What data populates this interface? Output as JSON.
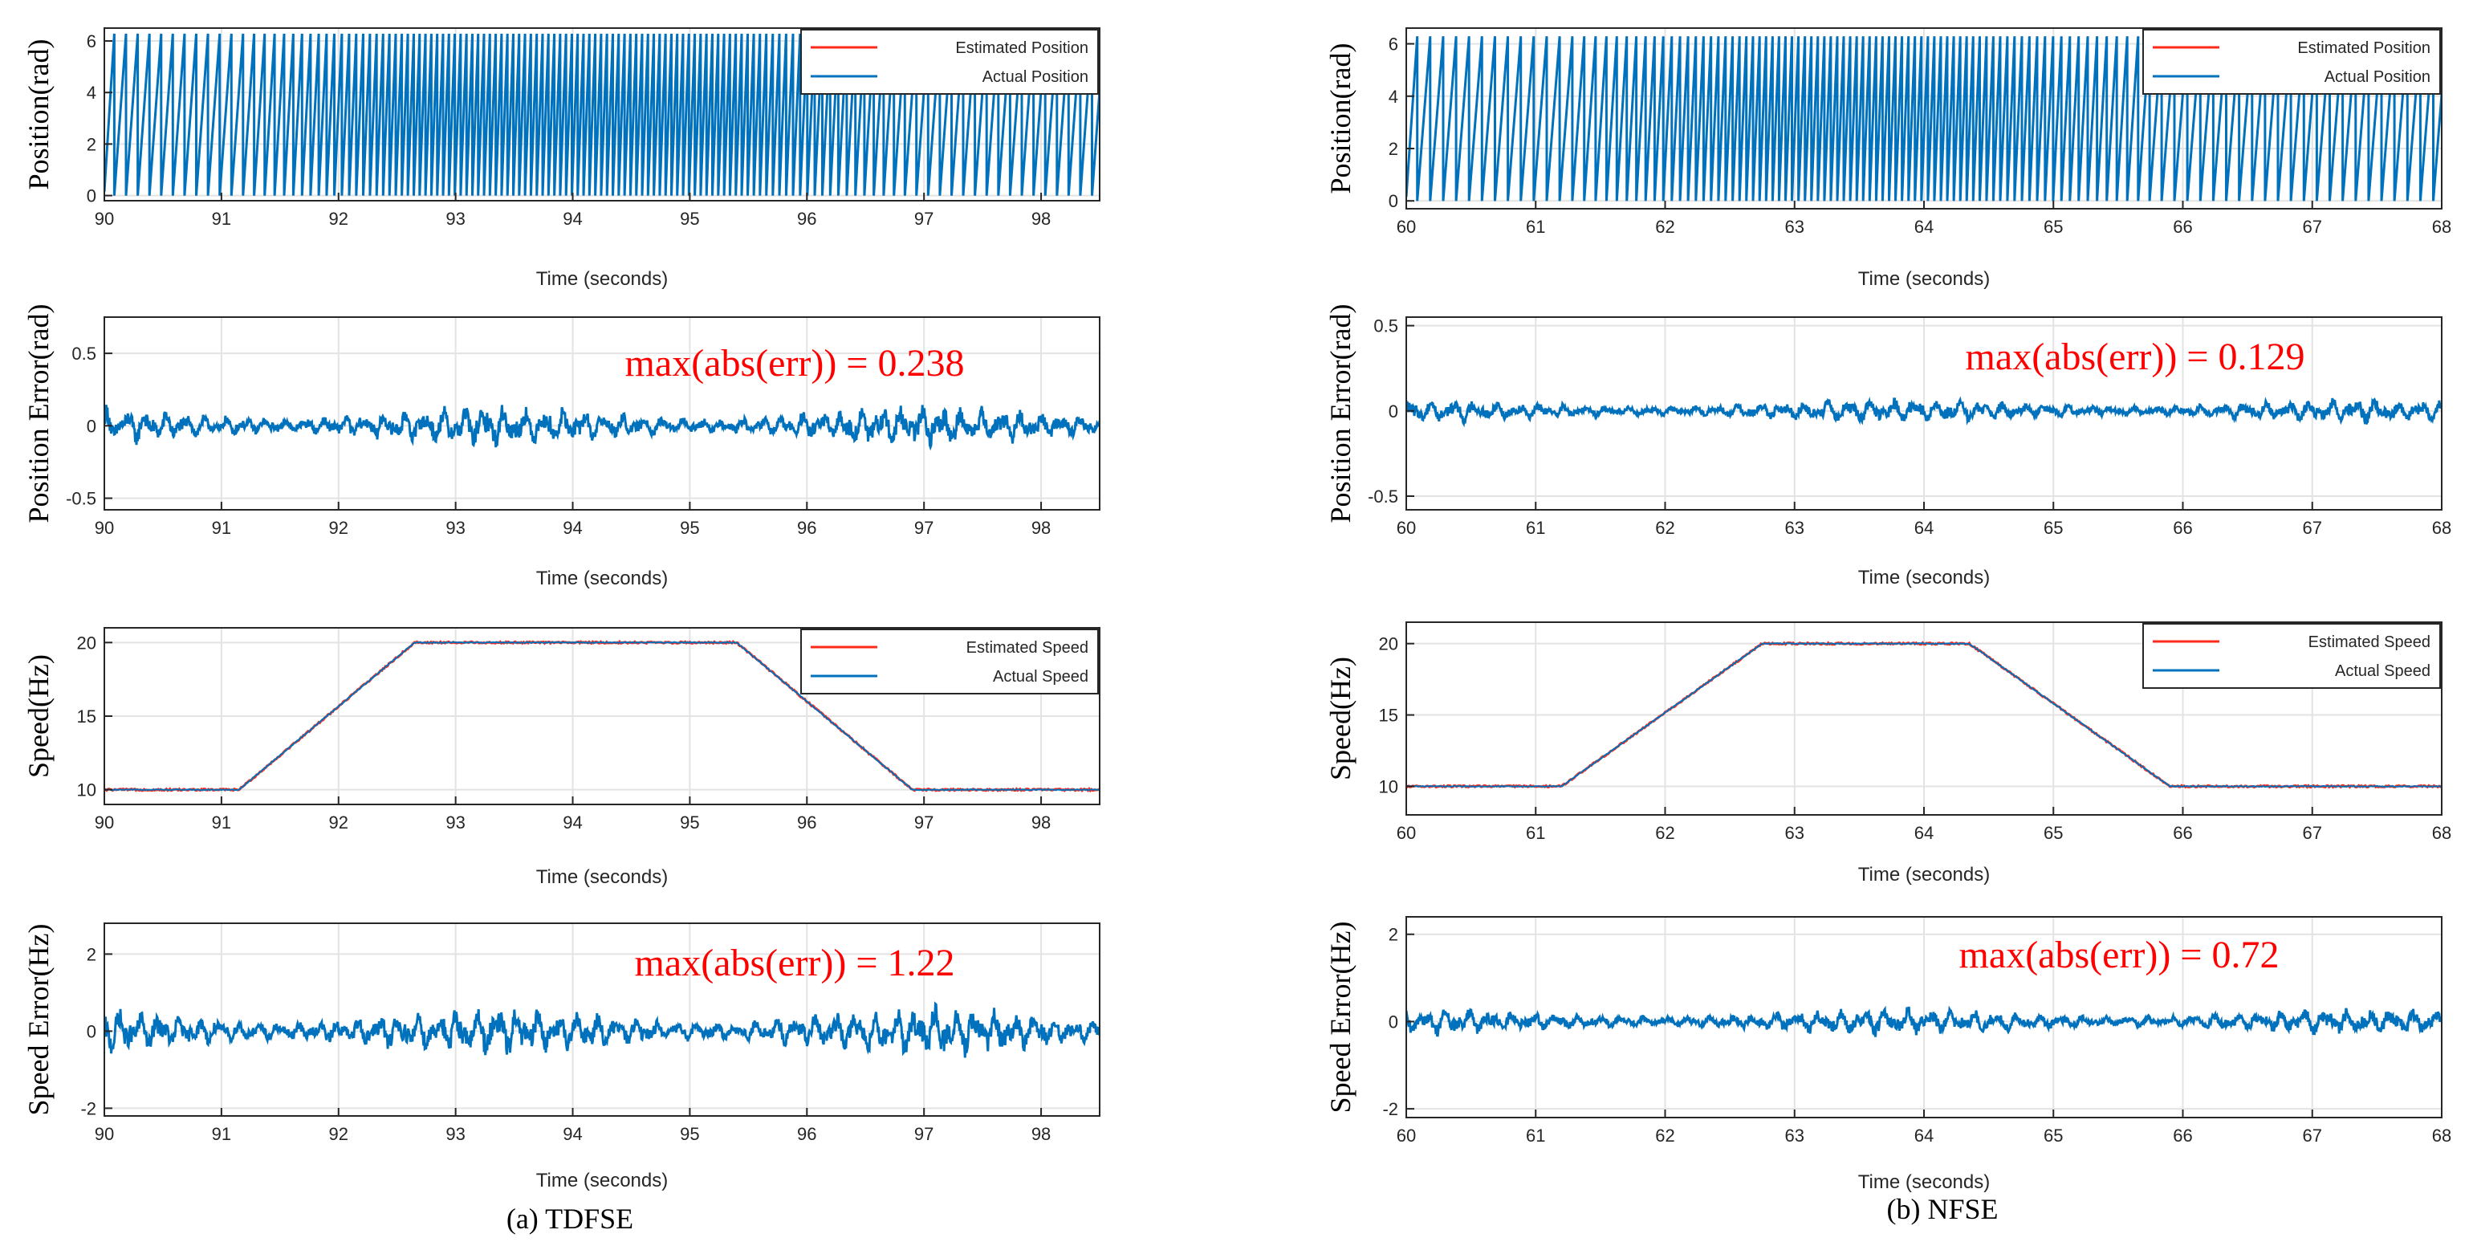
{
  "captions": [
    "(a) TDFSE",
    "(b) NFSE"
  ],
  "chart_data": [
    {
      "type": "line",
      "panel": "a1",
      "xlabel": "Time (seconds)",
      "ylabel": "Position(rad)",
      "xlim": [
        90,
        98.5
      ],
      "ylim": [
        -0.2,
        6.5
      ],
      "xticks": [
        "90",
        "91",
        "92",
        "93",
        "94",
        "95",
        "96",
        "97",
        "98"
      ],
      "yticks": [
        "0",
        "2",
        "4",
        "6"
      ],
      "legend": "top-right",
      "grid": true,
      "signal": "sawtooth",
      "sawtooth_range": [
        0,
        6.283
      ],
      "speed_profile_hz": [
        [
          90,
          10
        ],
        [
          91.15,
          10
        ],
        [
          92.65,
          20
        ],
        [
          95.4,
          20
        ],
        [
          96.9,
          10
        ],
        [
          98.5,
          10
        ]
      ],
      "series": [
        {
          "name": "Estimated Position",
          "color": "#ff2a1a"
        },
        {
          "name": "Actual Position",
          "color": "#0072bd"
        }
      ]
    },
    {
      "type": "line",
      "panel": "a2",
      "xlabel": "Time (seconds)",
      "ylabel": "Position Error(rad)",
      "xlim": [
        90,
        98.5
      ],
      "ylim": [
        -0.58,
        0.75
      ],
      "xticks": [
        "90",
        "91",
        "92",
        "93",
        "94",
        "95",
        "96",
        "97",
        "98"
      ],
      "yticks": [
        "-0.5",
        "0",
        "0.5"
      ],
      "grid": true,
      "signal": "noise",
      "noise_amplitude": 0.1,
      "annotation": "max(abs(err)) = 0.238",
      "series": [
        {
          "color": "#0072bd"
        }
      ]
    },
    {
      "type": "line",
      "panel": "a3",
      "xlabel": "Time (seconds)",
      "ylabel": "Speed(Hz)",
      "xlim": [
        90,
        98.5
      ],
      "ylim": [
        9,
        21
      ],
      "xticks": [
        "90",
        "91",
        "92",
        "93",
        "94",
        "95",
        "96",
        "97",
        "98"
      ],
      "yticks": [
        "10",
        "15",
        "20"
      ],
      "legend": "top-right",
      "grid": true,
      "signal": "profile",
      "points": [
        [
          90,
          10
        ],
        [
          91.15,
          10
        ],
        [
          92.65,
          20
        ],
        [
          95.4,
          20
        ],
        [
          96.9,
          10
        ],
        [
          98.5,
          10
        ]
      ],
      "series": [
        {
          "name": "Estimated Speed",
          "color": "#ff2a1a"
        },
        {
          "name": "Actual Speed",
          "color": "#0072bd"
        }
      ]
    },
    {
      "type": "line",
      "panel": "a4",
      "xlabel": "Time (seconds)",
      "ylabel": "Speed Error(Hz)",
      "xlim": [
        90,
        98.5
      ],
      "ylim": [
        -2.2,
        2.8
      ],
      "xticks": [
        "90",
        "91",
        "92",
        "93",
        "94",
        "95",
        "96",
        "97",
        "98"
      ],
      "yticks": [
        "-2",
        "0",
        "2"
      ],
      "grid": true,
      "signal": "noise",
      "noise_amplitude": 0.45,
      "annotation": "max(abs(err)) = 1.22",
      "series": [
        {
          "color": "#0072bd"
        }
      ]
    },
    {
      "type": "line",
      "panel": "b1",
      "xlabel": "Time (seconds)",
      "ylabel": "Position(rad)",
      "xlim": [
        60,
        68
      ],
      "ylim": [
        -0.3,
        6.6
      ],
      "xticks": [
        "60",
        "61",
        "62",
        "63",
        "64",
        "65",
        "66",
        "67",
        "68"
      ],
      "yticks": [
        "0",
        "2",
        "4",
        "6"
      ],
      "legend": "top-right",
      "grid": true,
      "signal": "sawtooth",
      "sawtooth_range": [
        0,
        6.283
      ],
      "speed_profile_hz": [
        [
          60,
          10
        ],
        [
          61.2,
          10
        ],
        [
          62.75,
          20
        ],
        [
          64.35,
          20
        ],
        [
          65.9,
          10
        ],
        [
          68,
          10
        ]
      ],
      "series": [
        {
          "name": "Estimated Position",
          "color": "#ff2a1a"
        },
        {
          "name": "Actual Position",
          "color": "#0072bd"
        }
      ]
    },
    {
      "type": "line",
      "panel": "b2",
      "xlabel": "Time (seconds)",
      "ylabel": "Position Error(rad)",
      "xlim": [
        60,
        68
      ],
      "ylim": [
        -0.58,
        0.55
      ],
      "xticks": [
        "60",
        "61",
        "62",
        "63",
        "64",
        "65",
        "66",
        "67",
        "68"
      ],
      "yticks": [
        "-0.5",
        "0",
        "0.5"
      ],
      "grid": true,
      "signal": "noise",
      "noise_amplitude": 0.05,
      "annotation": "max(abs(err)) = 0.129",
      "series": [
        {
          "color": "#0072bd"
        }
      ]
    },
    {
      "type": "line",
      "panel": "b3",
      "xlabel": "Time (seconds)",
      "ylabel": "Speed(Hz)",
      "xlim": [
        60,
        68
      ],
      "ylim": [
        8,
        21.5
      ],
      "xticks": [
        "60",
        "61",
        "62",
        "63",
        "64",
        "65",
        "66",
        "67",
        "68"
      ],
      "yticks": [
        "10",
        "15",
        "20"
      ],
      "legend": "top-right",
      "grid": true,
      "signal": "profile",
      "points": [
        [
          60,
          10
        ],
        [
          61.2,
          10
        ],
        [
          62.75,
          20
        ],
        [
          64.35,
          20
        ],
        [
          65.9,
          10
        ],
        [
          68,
          10
        ]
      ],
      "series": [
        {
          "name": "Estimated Speed",
          "color": "#ff2a1a"
        },
        {
          "name": "Actual Speed",
          "color": "#0072bd"
        }
      ]
    },
    {
      "type": "line",
      "panel": "b4",
      "xlabel": "Time (seconds)",
      "ylabel": "Speed Error(Hz)",
      "xlim": [
        60,
        68
      ],
      "ylim": [
        -2.2,
        2.4
      ],
      "xticks": [
        "60",
        "61",
        "62",
        "63",
        "64",
        "65",
        "66",
        "67",
        "68"
      ],
      "yticks": [
        "-2",
        "0",
        "2"
      ],
      "grid": true,
      "signal": "noise",
      "noise_amplitude": 0.22,
      "annotation": "max(abs(err)) = 0.72",
      "series": [
        {
          "color": "#0072bd"
        }
      ]
    }
  ]
}
